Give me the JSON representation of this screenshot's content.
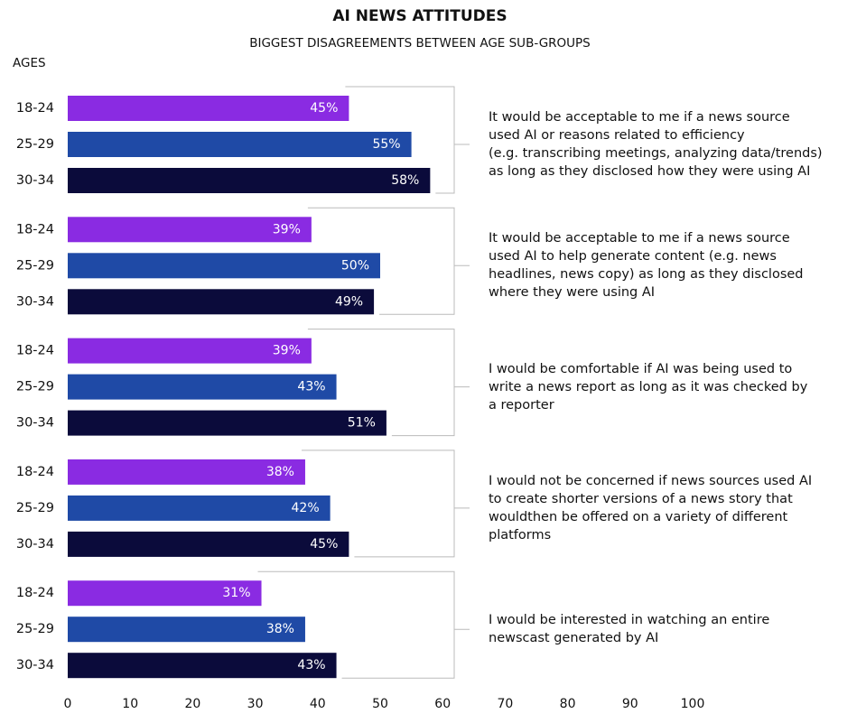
{
  "chart_data": {
    "type": "bar",
    "orientation": "horizontal",
    "title": "AI NEWS ATTITUDES",
    "subtitle": "BIGGEST DISAGREEMENTS BETWEEN AGE SUB-GROUPS",
    "y_label": "AGES",
    "categories": [
      "It would be acceptable to me if a news source\nused AI or reasons related to efficiency\n(e.g. transcribing meetings, analyzing data/trends)\nas long as they disclosed how they were using AI",
      "It would be acceptable to me if a news source\nused AI to help generate content (e.g. news\nheadlines, news copy) as long as they disclosed\nwhere they were using AI",
      "I would be comfortable if AI was being used to\nwrite a news report as long as it was checked by\na reporter",
      "I would not be concerned if news sources used AI\nto create shorter versions of a news story that\nwouldthen be offered on a variety of different\nplatforms",
      "I would be interested in watching an entire\nnewscast generated by AI"
    ],
    "series": [
      {
        "name": "18-24",
        "color": "#8a2be2",
        "values": [
          45,
          39,
          39,
          38,
          31
        ],
        "value_labels": [
          "45%",
          "39%",
          "39%",
          "38%",
          "31%"
        ]
      },
      {
        "name": "25-29",
        "color": "#1f4aa6",
        "values": [
          55,
          50,
          43,
          42,
          38
        ],
        "value_labels": [
          "55%",
          "50%",
          "43%",
          "42%",
          "38%"
        ]
      },
      {
        "name": "30-34",
        "color": "#0b0b3b",
        "values": [
          58,
          49,
          51,
          45,
          43
        ],
        "value_labels": [
          "58%",
          "49%",
          "51%",
          "45%",
          "43%"
        ]
      }
    ],
    "xlim": [
      0,
      100
    ],
    "xticks": [
      0,
      10,
      20,
      30,
      40,
      50,
      60,
      70,
      80,
      90,
      100
    ],
    "grid": false
  }
}
